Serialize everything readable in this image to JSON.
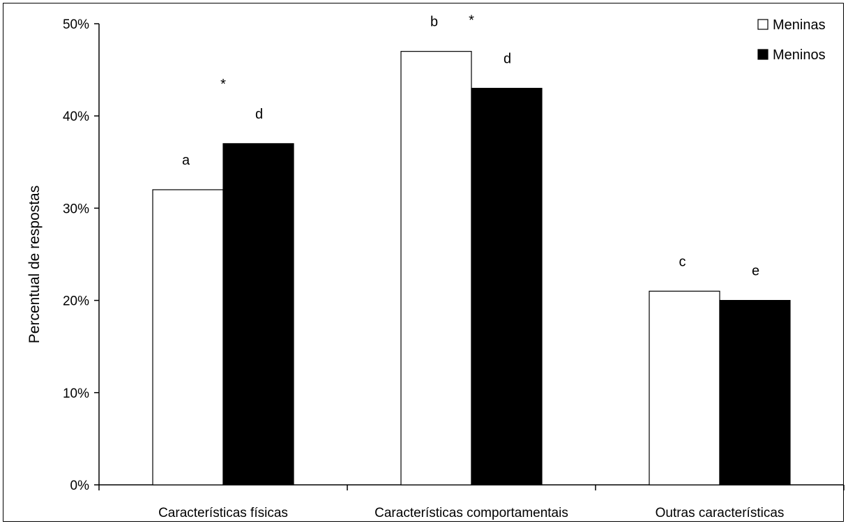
{
  "chart_data": {
    "type": "bar",
    "title": "",
    "xlabel": "",
    "ylabel": "Percentual de respostas",
    "categories": [
      "Características físicas",
      "Características comportamentais",
      "Outras características"
    ],
    "series": [
      {
        "name": "Meninas",
        "values": [
          32,
          47,
          21
        ],
        "color": "#ffffff",
        "letters": [
          "a",
          "b",
          "c"
        ]
      },
      {
        "name": "Meninos",
        "values": [
          37,
          43,
          20
        ],
        "color": "#000000",
        "letters": [
          "d",
          "d",
          "e"
        ]
      }
    ],
    "significance": [
      "*",
      "*",
      ""
    ],
    "ylim": [
      0,
      50
    ],
    "yticks": [
      0,
      10,
      20,
      30,
      40,
      50
    ],
    "ytick_labels": [
      "0%",
      "10%",
      "20%",
      "30%",
      "40%",
      "50%"
    ],
    "legend_position": "top-right",
    "grid": false
  }
}
